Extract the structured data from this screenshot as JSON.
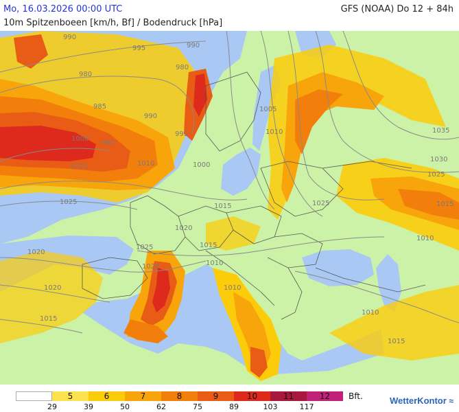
{
  "header": {
    "datetime": "Mo, 16.03.2026 00:00 UTC",
    "model_run": "GFS (NOAA) Do 12 + 84h",
    "parameter": "10m Spitzenboeen [km/h, Bf] / Bodendruck [hPa]"
  },
  "legend": {
    "beaufort": [
      "",
      "5",
      "6",
      "7",
      "8",
      "9",
      "10",
      "11",
      "12"
    ],
    "unit": "Bft.",
    "kmh": [
      "29",
      "39",
      "50",
      "62",
      "75",
      "89",
      "103",
      "117"
    ],
    "colors": [
      "#ffffff",
      "#fce34d",
      "#fccc0a",
      "#f7a50a",
      "#f27f0c",
      "#e85c16",
      "#dd2a1c",
      "#a8183c",
      "#c0227a"
    ]
  },
  "isobar_labels": [
    "990",
    "995",
    "990",
    "980",
    "980",
    "1005",
    "1010",
    "1035",
    "985",
    "990",
    "1000",
    "995",
    "990",
    "1015",
    "1010",
    "1000",
    "1030",
    "1025",
    "1025",
    "1015",
    "1020",
    "1015",
    "1025",
    "1020",
    "1010",
    "1025",
    "1015",
    "1010",
    "1020",
    "1015",
    "1020",
    "1010",
    "1010",
    "1015"
  ],
  "colors": {
    "land": "#ccf2a8",
    "sea": "#a9c8f4",
    "isobar": "#8a8a8a",
    "border": "#555555"
  },
  "brand": {
    "name": "WetterKontor",
    "icon": "wind-waves-icon"
  }
}
